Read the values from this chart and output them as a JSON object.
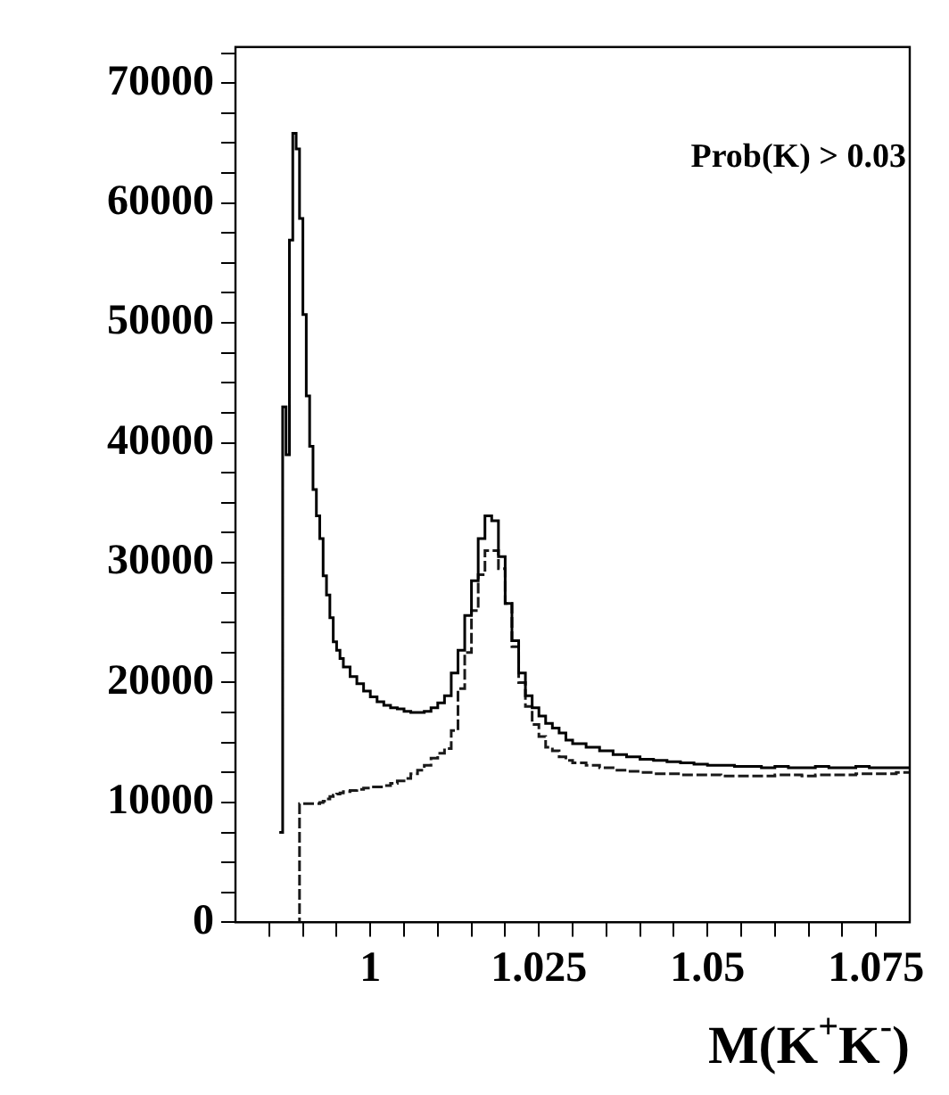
{
  "chart_data": {
    "type": "histogram",
    "xlabel": "M(K$^{+}$K$^{-}$)",
    "annotations": [
      "Prob(K) > 0.03"
    ],
    "bins": [
      0.9865,
      0.987,
      0.9875,
      0.988,
      0.9885,
      0.989,
      0.9895,
      0.99,
      0.9905,
      0.991,
      0.9915,
      0.992,
      0.9925,
      0.993,
      0.9935,
      0.994,
      0.9945,
      0.995,
      0.9955,
      0.996,
      0.997,
      0.998,
      0.999,
      1.0,
      1.001,
      1.002,
      1.003,
      1.004,
      1.005,
      1.006,
      1.007,
      1.008,
      1.009,
      1.01,
      1.011,
      1.012,
      1.013,
      1.014,
      1.015,
      1.016,
      1.017,
      1.018,
      1.019,
      1.02,
      1.021,
      1.022,
      1.023,
      1.024,
      1.025,
      1.026,
      1.027,
      1.028,
      1.029,
      1.03,
      1.032,
      1.034,
      1.036,
      1.038,
      1.04,
      1.042,
      1.044,
      1.046,
      1.048,
      1.05,
      1.052,
      1.054,
      1.056,
      1.058,
      1.06,
      1.062,
      1.064,
      1.066,
      1.068,
      1.07,
      1.072,
      1.074,
      1.076,
      1.078,
      1.08
    ],
    "series": [
      {
        "color": "#000000",
        "line_style": "solid",
        "values": [
          7500,
          43000,
          39000,
          56900,
          65800,
          64500,
          58700,
          50700,
          43900,
          39700,
          36100,
          33900,
          32000,
          28900,
          27300,
          25400,
          23400,
          22700,
          22000,
          21300,
          20500,
          19900,
          19300,
          18800,
          18400,
          18100,
          17900,
          17800,
          17600,
          17500,
          17500,
          17600,
          17900,
          18300,
          18900,
          20800,
          22700,
          25600,
          28500,
          32000,
          33900,
          33500,
          30500,
          26600,
          23500,
          20800,
          18900,
          17900,
          17200,
          16600,
          16200,
          15800,
          15200,
          14900,
          14600,
          14300,
          14000,
          13800,
          13600,
          13500,
          13400,
          13300,
          13200,
          13100,
          13100,
          13000,
          13000,
          12900,
          13000,
          12900,
          12900,
          13000,
          12900,
          12900,
          13000,
          12900,
          12900,
          12900
        ]
      },
      {
        "color": "#1a1a1a",
        "line_style": "dashed",
        "values": [
          0,
          0,
          0,
          0,
          0,
          0,
          9900,
          9900,
          9900,
          9900,
          9900,
          9900,
          10000,
          10100,
          10300,
          10500,
          10600,
          10700,
          10800,
          10900,
          11000,
          11100,
          11200,
          11300,
          11300,
          11400,
          11600,
          11800,
          12000,
          12400,
          12700,
          13100,
          13700,
          14100,
          14500,
          16000,
          19500,
          22500,
          26000,
          29000,
          31000,
          31000,
          29500,
          26600,
          23000,
          20000,
          18000,
          16500,
          15500,
          14600,
          14300,
          13800,
          13500,
          13300,
          13100,
          12900,
          12700,
          12600,
          12500,
          12400,
          12400,
          12300,
          12300,
          12300,
          12200,
          12200,
          12200,
          12200,
          12300,
          12300,
          12200,
          12300,
          12300,
          12300,
          12400,
          12400,
          12400,
          12500
        ]
      }
    ],
    "xlim": [
      0.98,
      1.08
    ],
    "xticks": [
      {
        "value": 0.985,
        "label": null
      },
      {
        "value": 0.99,
        "label": null
      },
      {
        "value": 0.995,
        "label": null
      },
      1,
      {
        "value": 1.005,
        "label": null
      },
      {
        "value": 1.01,
        "label": null
      },
      {
        "value": 1.015,
        "label": null
      },
      {
        "value": 1.02,
        "label": null
      },
      1.025,
      {
        "value": 1.03,
        "label": null
      },
      {
        "value": 1.035,
        "label": null
      },
      {
        "value": 1.04,
        "label": null
      },
      {
        "value": 1.045,
        "label": null
      },
      1.05,
      {
        "value": 1.055,
        "label": null
      },
      {
        "value": 1.06,
        "label": null
      },
      {
        "value": 1.065,
        "label": null
      },
      {
        "value": 1.07,
        "label": null
      },
      1.075
    ],
    "ylim": [
      0,
      73000
    ],
    "yticks": [
      0,
      {
        "value": 2500,
        "label": null
      },
      {
        "value": 5000,
        "label": null
      },
      {
        "value": 7500,
        "label": null
      },
      10000,
      {
        "value": 12500,
        "label": null
      },
      {
        "value": 15000,
        "label": null
      },
      {
        "value": 17500,
        "label": null
      },
      20000,
      {
        "value": 22500,
        "label": null
      },
      {
        "value": 25000,
        "label": null
      },
      {
        "value": 27500,
        "label": null
      },
      30000,
      {
        "value": 32500,
        "label": null
      },
      {
        "value": 35000,
        "label": null
      },
      {
        "value": 37500,
        "label": null
      },
      40000,
      {
        "value": 42500,
        "label": null
      },
      {
        "value": 45000,
        "label": null
      },
      {
        "value": 47500,
        "label": null
      },
      50000,
      {
        "value": 52500,
        "label": null
      },
      {
        "value": 55000,
        "label": null
      },
      {
        "value": 57500,
        "label": null
      },
      60000,
      {
        "value": 62500,
        "label": null
      },
      {
        "value": 65000,
        "label": null
      },
      {
        "value": 67500,
        "label": null
      },
      70000,
      {
        "value": 72500,
        "label": null
      }
    ],
    "grid": false,
    "legend": false
  }
}
